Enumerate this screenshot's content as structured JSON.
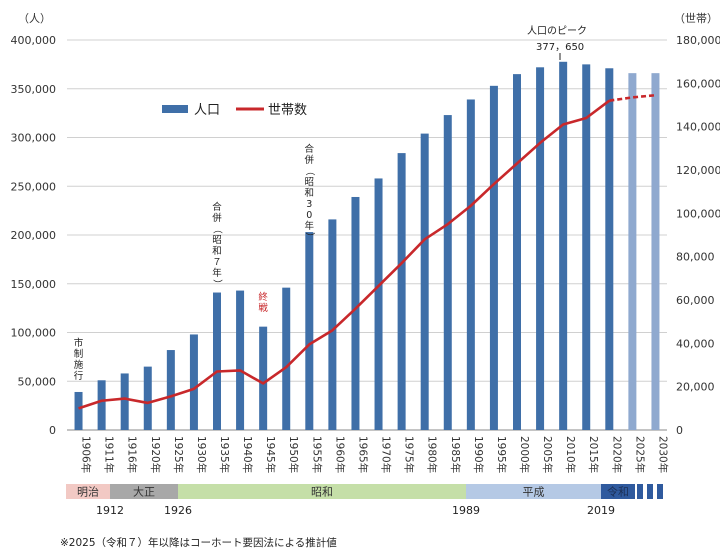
{
  "chart_data": {
    "type": "bar+line",
    "left_unit": "（人）",
    "right_unit": "（世帯）",
    "left_ticks": [
      "400,000",
      "350,000",
      "300,000",
      "250,000",
      "200,000",
      "150,000",
      "100,000",
      "50,000",
      "0"
    ],
    "right_ticks": [
      "180,000",
      "160,000",
      "140,000",
      "120,000",
      "100,000",
      "80,000",
      "60,000",
      "40,000",
      "20,000",
      "0"
    ],
    "ylim_left": [
      0,
      400000
    ],
    "ylim_right": [
      0,
      180000
    ],
    "legend": {
      "bar": "人口",
      "line": "世帯数"
    },
    "categories": [
      "1906年",
      "1911年",
      "1916年",
      "1920年",
      "1925年",
      "1930年",
      "1935年",
      "1940年",
      "1945年",
      "1950年",
      "1955年",
      "1960年",
      "1965年",
      "1970年",
      "1975年",
      "1980年",
      "1985年",
      "1990年",
      "1995年",
      "2000年",
      "2005年",
      "2010年",
      "2015年",
      "2020年",
      "2025年",
      "2030年"
    ],
    "series": [
      {
        "name": "人口",
        "values": [
          39000,
          51000,
          58000,
          65000,
          82000,
          98000,
          141000,
          143000,
          106000,
          146000,
          203000,
          216000,
          239000,
          258000,
          284000,
          304000,
          323000,
          339000,
          353000,
          365000,
          372000,
          377650,
          375000,
          371000,
          366000,
          366000
        ],
        "projected_from_index": 24
      },
      {
        "name": "世帯数",
        "values": [
          10000,
          13500,
          14500,
          12500,
          15500,
          19000,
          27000,
          27500,
          21500,
          29000,
          39500,
          46000,
          56000,
          66500,
          77000,
          88000,
          95000,
          103500,
          113500,
          123000,
          132500,
          141000,
          144000,
          152000,
          153500,
          154500
        ],
        "projected_from_index": 23
      }
    ],
    "annotations": {
      "peak_title": "人口のピーク",
      "peak_value": "377，650",
      "ann_1906": "市制施行",
      "ann_1935": "合併（昭和７年）",
      "ann_1945": "終戦",
      "ann_1955": "合併（昭和30年）"
    },
    "eras": [
      {
        "name": "明治",
        "color": "#f2c9c4"
      },
      {
        "name": "大正",
        "color": "#a8a8a8"
      },
      {
        "name": "昭和",
        "color": "#c5dfa8"
      },
      {
        "name": "平成",
        "color": "#b5c9e5"
      },
      {
        "name": "令和",
        "color": "#2f5a9e"
      }
    ],
    "era_years": [
      "1912",
      "1926",
      "1989",
      "2019"
    ],
    "footnote": "※2025（令和７）年以降はコーホート要因法による推計値",
    "colors": {
      "bar": "#3f6fa8",
      "bar_projected": "#8fa9cf",
      "line": "#c8282b",
      "line_projected": "#c8282b",
      "grid": "#d0d0d0",
      "ann_red": "#c8282b"
    }
  }
}
